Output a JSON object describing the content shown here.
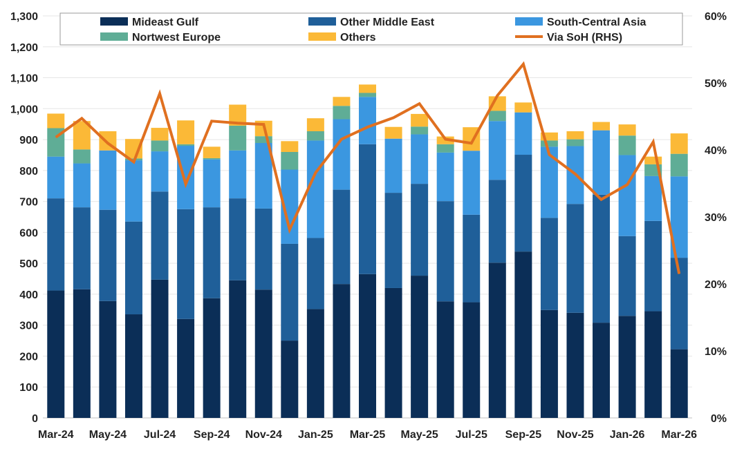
{
  "chart_data": {
    "type": "bar",
    "stacked": true,
    "categories": [
      "Mar-24",
      "Apr-24",
      "May-24",
      "Jun-24",
      "Jul-24",
      "Aug-24",
      "Sep-24",
      "Oct-24",
      "Nov-24",
      "Dec-24",
      "Jan-25",
      "Feb-25",
      "Mar-25",
      "Apr-25",
      "May-25",
      "Jun-25",
      "Jul-25",
      "Aug-25",
      "Sep-25",
      "Oct-25",
      "Nov-25",
      "Dec-25",
      "Jan-26",
      "Feb-26",
      "Mar-26"
    ],
    "x_tick_labels": [
      "Mar-24",
      "May-24",
      "Jul-24",
      "Sep-24",
      "Nov-24",
      "Jan-25",
      "Mar-25",
      "May-25",
      "Jul-25",
      "Sep-25",
      "Nov-25",
      "Jan-26",
      "Mar-26"
    ],
    "ylim": [
      0,
      1300
    ],
    "y_ticks": [
      "0",
      "100",
      "200",
      "300",
      "400",
      "500",
      "600",
      "700",
      "800",
      "900",
      "1,000",
      "1,100",
      "1,200",
      "1,300"
    ],
    "y2lim": [
      0,
      60
    ],
    "y2_ticks": [
      "0%",
      "10%",
      "20%",
      "30%",
      "40%",
      "50%",
      "60%"
    ],
    "series": [
      {
        "name": "Mideast Gulf",
        "color": "#0b2e57",
        "values": [
          412,
          416,
          378,
          335,
          447,
          320,
          387,
          445,
          415,
          250,
          352,
          433,
          465,
          420,
          460,
          377,
          374,
          502,
          538,
          349,
          340,
          308,
          330,
          345,
          222
        ]
      },
      {
        "name": "Other Middle East",
        "color": "#1f5f99",
        "values": [
          298,
          265,
          295,
          300,
          285,
          355,
          294,
          265,
          262,
          313,
          230,
          305,
          420,
          308,
          297,
          324,
          283,
          268,
          313,
          298,
          352,
          414,
          258,
          292,
          296
        ]
      },
      {
        "name": "South-Central Asia",
        "color": "#3b97e0",
        "values": [
          135,
          142,
          192,
          198,
          130,
          205,
          155,
          155,
          212,
          240,
          315,
          228,
          153,
          175,
          160,
          157,
          207,
          190,
          137,
          230,
          187,
          208,
          262,
          145,
          263
        ]
      },
      {
        "name": "Nortwest Europe",
        "color": "#5fad96",
        "values": [
          92,
          45,
          0,
          6,
          35,
          5,
          4,
          80,
          22,
          57,
          30,
          43,
          13,
          0,
          25,
          27,
          0,
          33,
          0,
          20,
          22,
          0,
          63,
          38,
          73
        ]
      },
      {
        "name": "Others",
        "color": "#fbb937",
        "values": [
          47,
          92,
          62,
          63,
          41,
          77,
          37,
          68,
          50,
          35,
          42,
          29,
          27,
          38,
          41,
          25,
          76,
          47,
          32,
          26,
          26,
          27,
          36,
          25,
          66
        ]
      }
    ],
    "line_series": {
      "name": "Via SoH (RHS)",
      "color": "#e07020",
      "axis": "right",
      "values": [
        41.9,
        44.7,
        41.0,
        38.2,
        48.4,
        34.9,
        44.3,
        44.0,
        43.8,
        28.1,
        36.6,
        41.6,
        43.4,
        44.8,
        46.9,
        41.6,
        41.0,
        48.1,
        52.8,
        39.3,
        36.4,
        32.6,
        34.8,
        41.2,
        21.5
      ]
    },
    "legend": {
      "placement": "top",
      "columns": 3
    }
  }
}
